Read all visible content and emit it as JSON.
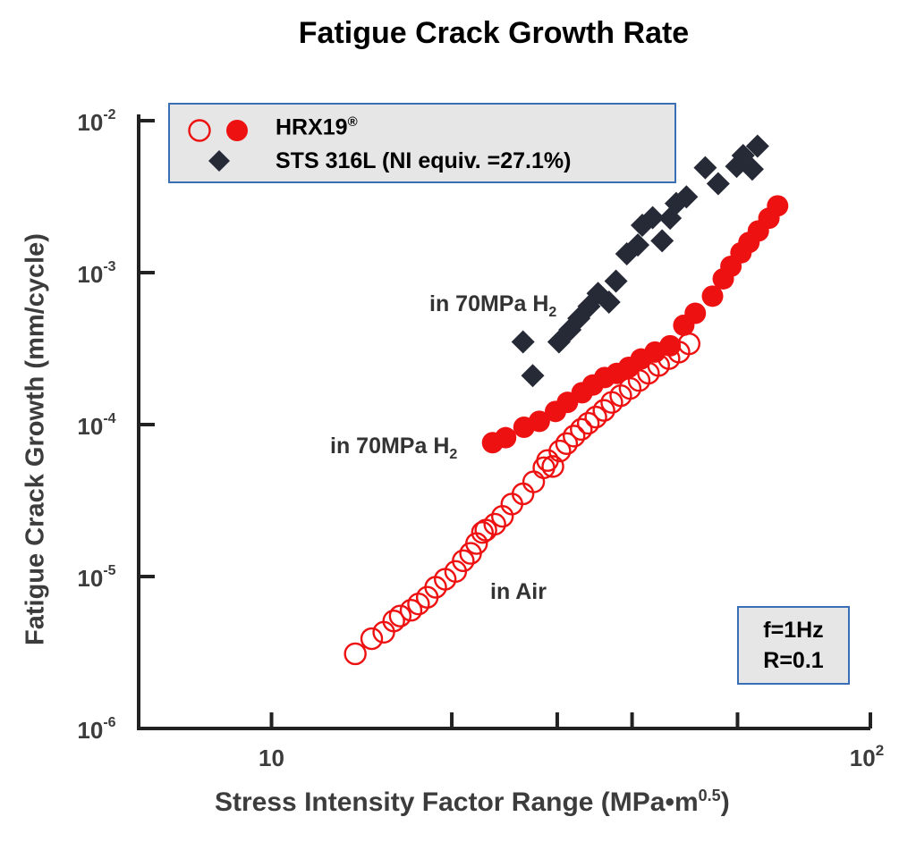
{
  "chart_data": {
    "type": "scatter",
    "title": "Fatigue Crack Growth Rate",
    "ylabel": "Fatigue Crack Growth (mm/cycle)",
    "xlabel_main": "Stress Intensity Factor Range (MPa•m",
    "xlabel_sup": "0.5",
    "xlabel_close": ")",
    "x_scale": "log",
    "y_scale": "log",
    "xlim": [
      6,
      100
    ],
    "ylim": [
      1e-06,
      0.01
    ],
    "x_ticks": [
      {
        "value": 10,
        "label": "10",
        "sup": ""
      },
      {
        "value": 20,
        "label": "",
        "sup": ""
      },
      {
        "value": 30,
        "label": "",
        "sup": ""
      },
      {
        "value": 40,
        "label": "",
        "sup": ""
      },
      {
        "value": 60,
        "label": "",
        "sup": ""
      },
      {
        "value": 100,
        "label": "10",
        "sup": "2"
      }
    ],
    "y_ticks": [
      {
        "value": 1e-06,
        "base": "10",
        "exp": "-6"
      },
      {
        "value": 1e-05,
        "base": "10",
        "exp": "-5"
      },
      {
        "value": 0.0001,
        "base": "10",
        "exp": "-4"
      },
      {
        "value": 0.001,
        "base": "10",
        "exp": "-3"
      },
      {
        "value": 0.01,
        "base": "10",
        "exp": "-2"
      }
    ],
    "legend": {
      "hrx_label": "HRX19",
      "hrx_sup": "®",
      "sts_label": "STS 316L (NI equiv. =27.1%)"
    },
    "conditions": [
      "f=1Hz",
      "R=0.1"
    ],
    "annotations": {
      "sts_h2": {
        "text": "in 70MPa H",
        "sub": "2"
      },
      "hrx_h2": {
        "text": "in 70MPa H",
        "sub": "2"
      },
      "hrx_air": {
        "text": "in Air"
      }
    },
    "colors": {
      "hrx": "#ee1111",
      "sts": "#252a36",
      "axis": "#222222",
      "box_border": "#3a6fb5",
      "box_fill": "#e6e6e6"
    },
    "series": [
      {
        "name": "HRX19 in Air",
        "marker": "open-circle",
        "points": [
          [
            13.8,
            3.1e-06
          ],
          [
            14.7,
            3.9e-06
          ],
          [
            15.4,
            4.3e-06
          ],
          [
            16.0,
            5.1e-06
          ],
          [
            16.4,
            5.5e-06
          ],
          [
            17.1,
            6e-06
          ],
          [
            17.6,
            6.6e-06
          ],
          [
            18.2,
            7.3e-06
          ],
          [
            18.8,
            8.5e-06
          ],
          [
            19.5,
            9.6e-06
          ],
          [
            20.3,
            1.08e-05
          ],
          [
            20.9,
            1.27e-05
          ],
          [
            21.5,
            1.42e-05
          ],
          [
            22.0,
            1.65e-05
          ],
          [
            22.5,
            1.95e-05
          ],
          [
            22.8,
            2.02e-05
          ],
          [
            23.6,
            2.21e-05
          ],
          [
            24.3,
            2.49e-05
          ],
          [
            25.2,
            3e-05
          ],
          [
            26.3,
            3.5e-05
          ],
          [
            27.4,
            4.2e-05
          ],
          [
            28.5,
            5.2e-05
          ],
          [
            28.9,
            5.8e-05
          ],
          [
            29.5,
            5.3e-05
          ],
          [
            30.3,
            6.7e-05
          ],
          [
            31.1,
            7.5e-05
          ],
          [
            32.0,
            8.4e-05
          ],
          [
            32.9,
            9.3e-05
          ],
          [
            33.8,
            0.000102
          ],
          [
            34.8,
            0.000112
          ],
          [
            35.9,
            0.000124
          ],
          [
            37.0,
            0.00014
          ],
          [
            38.3,
            0.000155
          ],
          [
            39.7,
            0.000173
          ],
          [
            41.1,
            0.000195
          ],
          [
            42.6,
            0.000218
          ],
          [
            44.3,
            0.000245
          ],
          [
            46.1,
            0.000272
          ],
          [
            47.9,
            0.0003
          ],
          [
            49.8,
            0.00034
          ]
        ]
      },
      {
        "name": "HRX19 in 70MPa H2",
        "marker": "filled-circle",
        "points": [
          [
            23.4,
            7.6e-05
          ],
          [
            24.6,
            8.2e-05
          ],
          [
            26.4,
            9.6e-05
          ],
          [
            28.0,
            0.000105
          ],
          [
            29.8,
            0.000122
          ],
          [
            31.2,
            0.00014
          ],
          [
            33.0,
            0.000162
          ],
          [
            34.4,
            0.000182
          ],
          [
            36.0,
            0.000204
          ],
          [
            37.7,
            0.000217
          ],
          [
            39.5,
            0.000238
          ],
          [
            41.4,
            0.00027
          ],
          [
            43.7,
            0.0003
          ],
          [
            46.3,
            0.00033
          ],
          [
            48.8,
            0.00045
          ],
          [
            51.0,
            0.00054
          ],
          [
            54.5,
            0.0007
          ],
          [
            56.8,
            0.00091
          ],
          [
            58.5,
            0.0011
          ],
          [
            60.8,
            0.00135
          ],
          [
            62.7,
            0.00158
          ],
          [
            65.0,
            0.00188
          ],
          [
            67.7,
            0.00228
          ],
          [
            70.0,
            0.00275
          ]
        ]
      },
      {
        "name": "STS 316L in 70MPa H2",
        "marker": "filled-diamond",
        "points": [
          [
            26.3,
            0.00035
          ],
          [
            27.3,
            0.00021
          ],
          [
            30.2,
            0.00035
          ],
          [
            31.5,
            0.00042
          ],
          [
            32.6,
            0.0005
          ],
          [
            33.9,
            0.0006
          ],
          [
            35.1,
            0.00073
          ],
          [
            36.6,
            0.00064
          ],
          [
            37.6,
            0.00088
          ],
          [
            39.2,
            0.00133
          ],
          [
            40.9,
            0.00152
          ],
          [
            41.6,
            0.00205
          ],
          [
            43.3,
            0.0023
          ],
          [
            44.9,
            0.00162
          ],
          [
            46.3,
            0.00228
          ],
          [
            47.4,
            0.00285
          ],
          [
            49.3,
            0.00315
          ],
          [
            53.0,
            0.0049
          ],
          [
            55.7,
            0.00385
          ],
          [
            59.8,
            0.005
          ],
          [
            61.3,
            0.0059
          ],
          [
            63.5,
            0.0048
          ],
          [
            64.8,
            0.0068
          ]
        ]
      }
    ]
  }
}
